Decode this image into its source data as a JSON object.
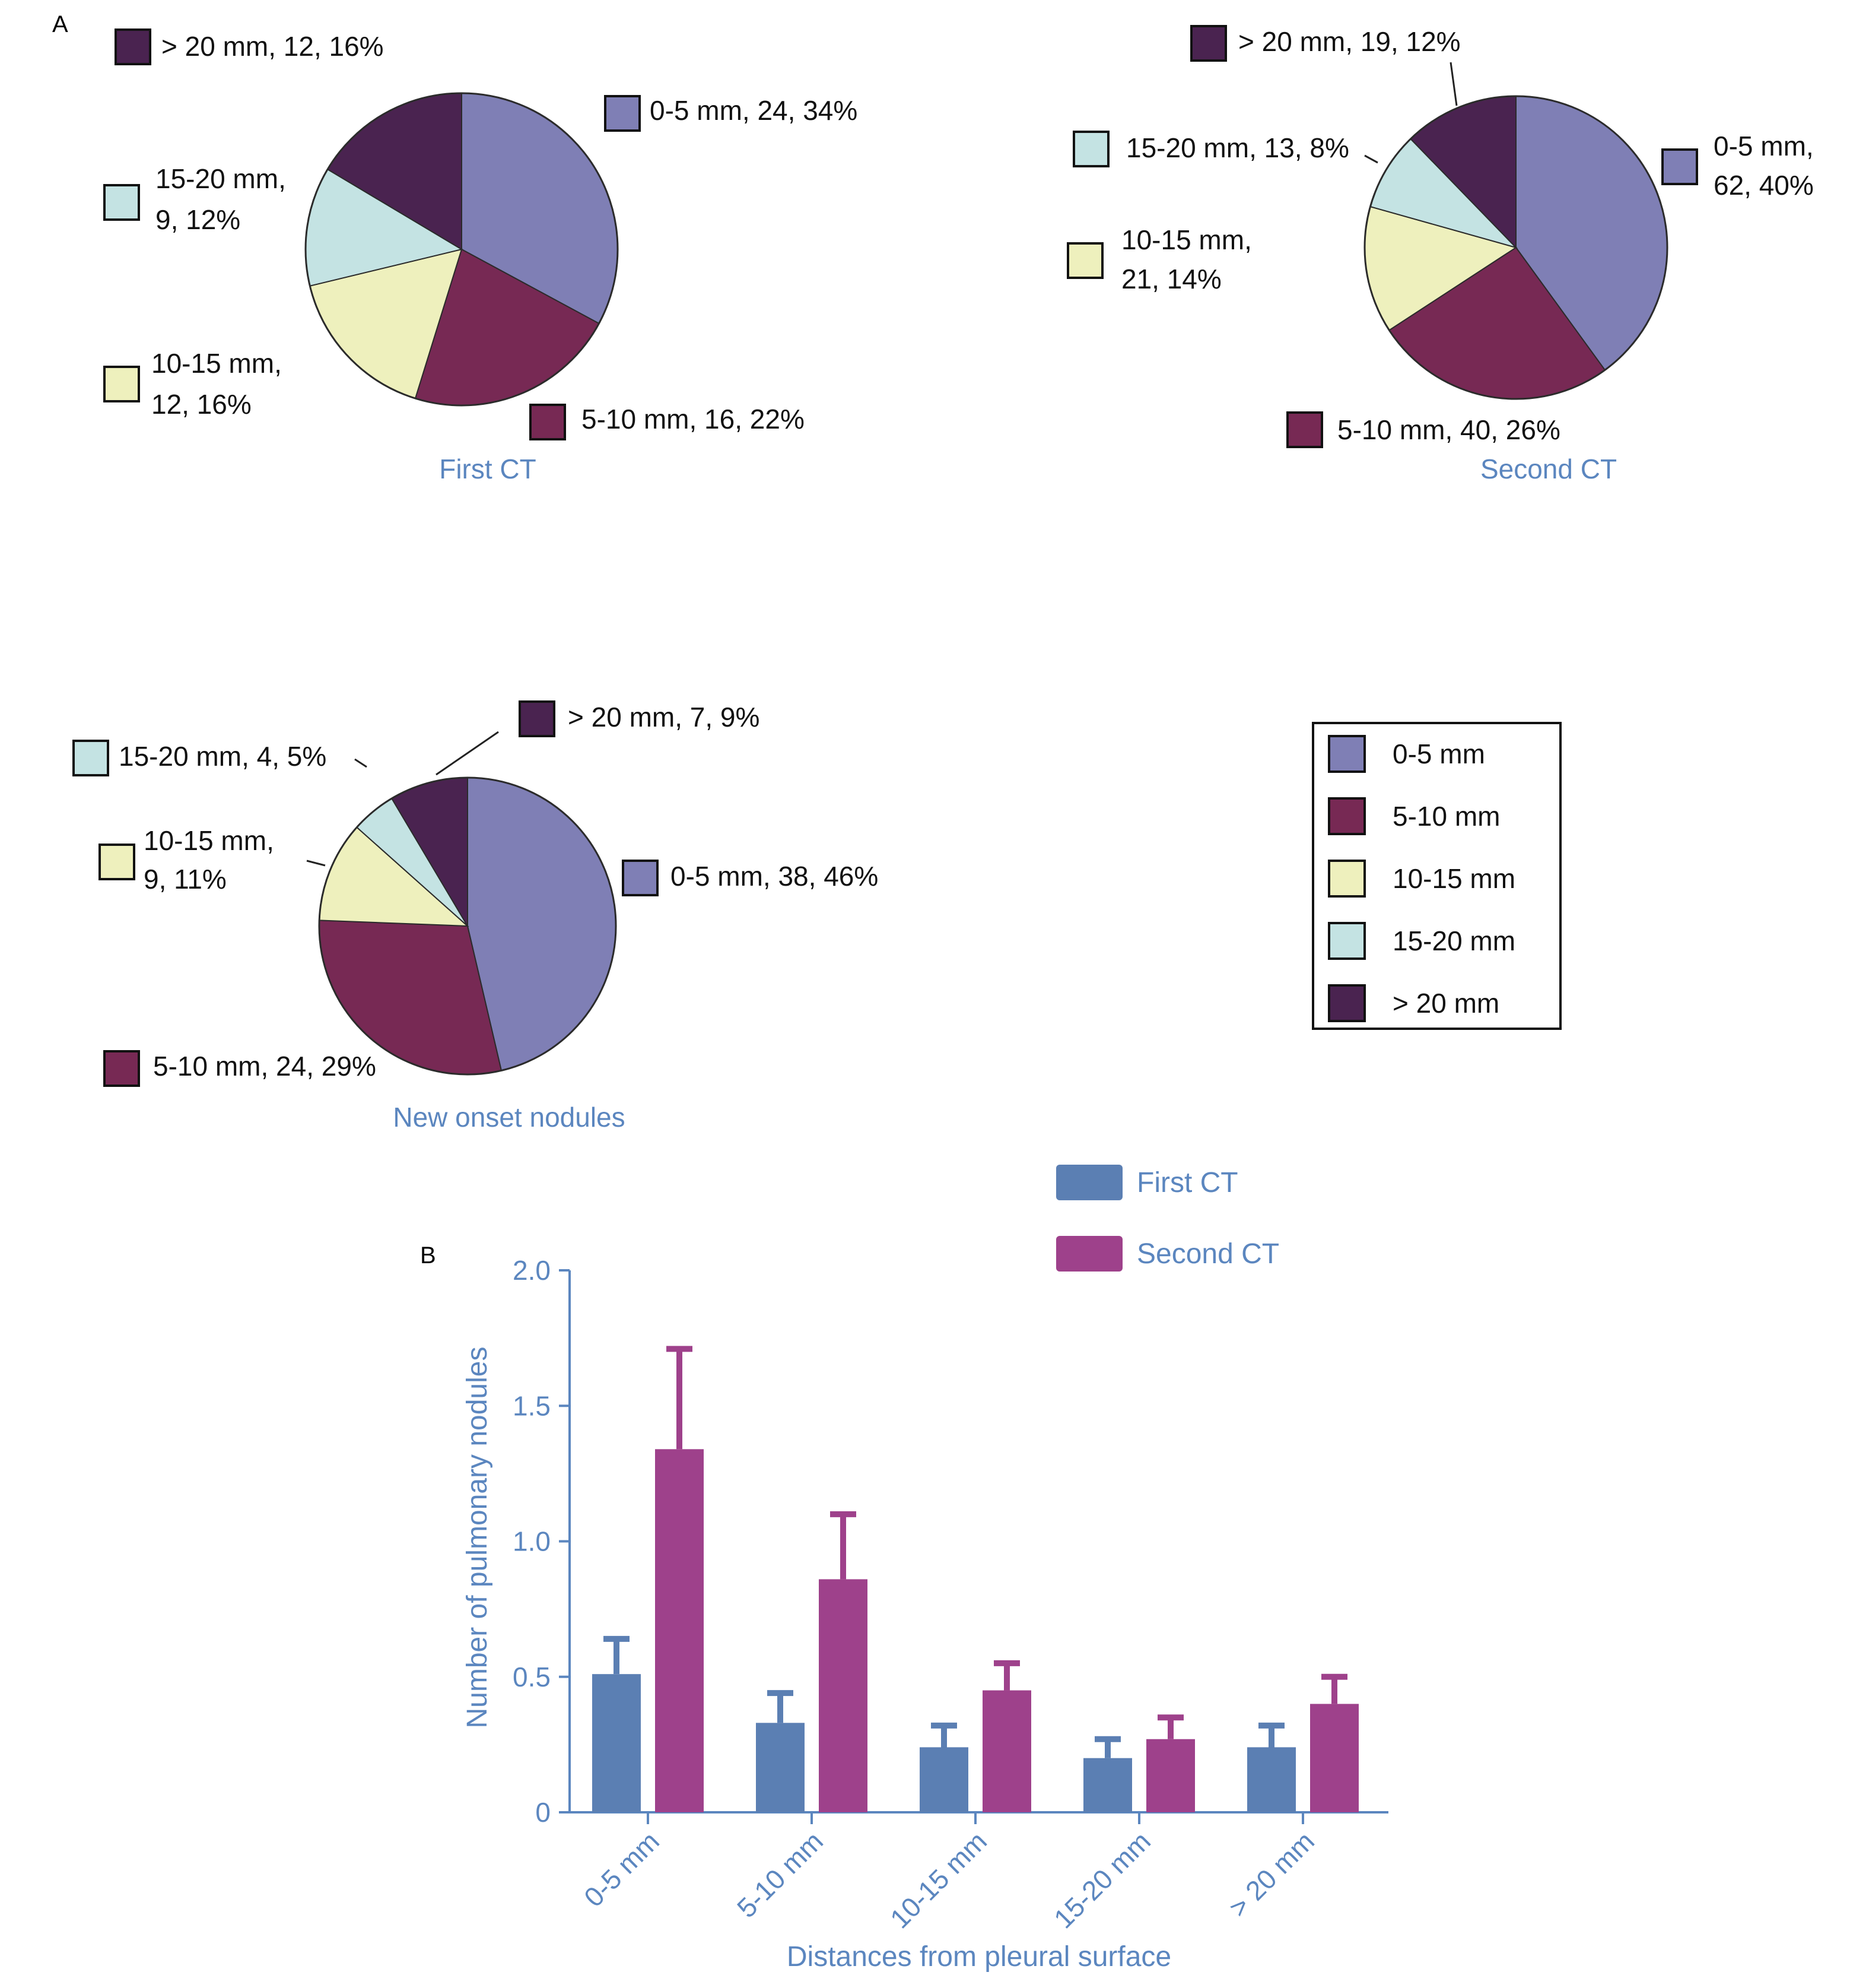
{
  "colors": {
    "c1": "#7f7fb5",
    "c2": "#772954",
    "c3": "#eef0bd",
    "c4": "#c4e3e3",
    "c5": "#4a2350",
    "title": "#5b86bf",
    "first": "#5b7fb3",
    "second": "#9e418b",
    "axis": "#5b86bf"
  },
  "panel_a": {
    "label": "A"
  },
  "panel_b": {
    "label": "B"
  },
  "chart_data": [
    {
      "type": "pie",
      "title": "First CT",
      "slices": [
        {
          "category": "0-5 mm",
          "count": 24,
          "percent": 34,
          "label": "0-5 mm, 24, 34%"
        },
        {
          "category": "5-10 mm",
          "count": 16,
          "percent": 22,
          "label": "5-10 mm, 16, 22%"
        },
        {
          "category": "10-15 mm",
          "count": 12,
          "percent": 16,
          "label": "10-15 mm, 12, 16%"
        },
        {
          "category": "15-20 mm",
          "count": 9,
          "percent": 12,
          "label": "15-20 mm, 9, 12%"
        },
        {
          "category": "> 20 mm",
          "count": 12,
          "percent": 16,
          "label": "> 20 mm, 12, 16%"
        }
      ]
    },
    {
      "type": "pie",
      "title": "Second CT",
      "slices": [
        {
          "category": "0-5 mm",
          "count": 62,
          "percent": 40,
          "label": "0-5 mm, 62, 40%"
        },
        {
          "category": "5-10 mm",
          "count": 40,
          "percent": 26,
          "label": "5-10 mm, 40, 26%"
        },
        {
          "category": "10-15 mm",
          "count": 21,
          "percent": 14,
          "label": "10-15 mm, 21, 14%"
        },
        {
          "category": "15-20 mm",
          "count": 13,
          "percent": 8,
          "label": "15-20 mm, 13, 8%"
        },
        {
          "category": "> 20 mm",
          "count": 19,
          "percent": 12,
          "label": "> 20 mm, 19, 12%"
        }
      ]
    },
    {
      "type": "pie",
      "title": "New onset nodules",
      "slices": [
        {
          "category": "0-5 mm",
          "count": 38,
          "percent": 46,
          "label": "0-5 mm, 38, 46%"
        },
        {
          "category": "5-10 mm",
          "count": 24,
          "percent": 29,
          "label": "5-10 mm, 24, 29%"
        },
        {
          "category": "10-15 mm",
          "count": 9,
          "percent": 11,
          "label": "10-15 mm, 9, 11%"
        },
        {
          "category": "15-20 mm",
          "count": 4,
          "percent": 5,
          "label": "15-20 mm, 4, 5%"
        },
        {
          "category": "> 20 mm",
          "count": 7,
          "percent": 9,
          "label": "> 20 mm, 7, 9%"
        }
      ]
    },
    {
      "type": "bar",
      "categories": [
        "0-5 mm",
        "5-10 mm",
        "10-15 mm",
        "15-20 mm",
        "> 20 mm"
      ],
      "series": [
        {
          "name": "First CT",
          "values": [
            0.51,
            0.33,
            0.24,
            0.2,
            0.24
          ],
          "error_upper": [
            0.64,
            0.44,
            0.32,
            0.27,
            0.32
          ]
        },
        {
          "name": "Second CT",
          "values": [
            1.34,
            0.86,
            0.45,
            0.27,
            0.4
          ],
          "error_upper": [
            1.71,
            1.1,
            0.55,
            0.35,
            0.5
          ]
        }
      ],
      "xlabel": "Distances from pleural surface",
      "ylabel": "Number of pulmonary nodules",
      "ylim": [
        0,
        2.0
      ],
      "yticks": [
        "0",
        "0.5",
        "1.0",
        "1.5",
        "2.0"
      ],
      "legend_position": "top-right",
      "grid": false
    }
  ],
  "legend": {
    "items": [
      "0-5 mm",
      "5-10 mm",
      "10-15 mm",
      "15-20 mm",
      "> 20 mm"
    ]
  }
}
